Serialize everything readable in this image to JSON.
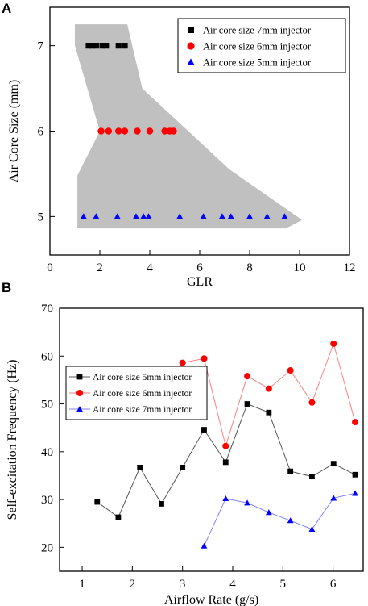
{
  "chart_data": [
    {
      "panel": "A",
      "type": "scatter",
      "xlabel": "GLR",
      "ylabel": "Air Core Size (mm)",
      "xlim": [
        0,
        12
      ],
      "ylim": [
        4.55,
        7.45
      ],
      "x_ticks": [
        0,
        2,
        4,
        6,
        8,
        10,
        12
      ],
      "y_ticks": [
        5,
        6,
        7
      ],
      "grid": false,
      "legend_position": "top-right",
      "region_polygon": {
        "fill": "#c0c0c0",
        "points": [
          [
            1.0,
            7.25
          ],
          [
            3.1,
            7.25
          ],
          [
            3.7,
            6.5
          ],
          [
            7.2,
            5.55
          ],
          [
            10.1,
            4.96
          ],
          [
            9.45,
            4.86
          ],
          [
            1.1,
            4.86
          ],
          [
            1.1,
            5.48
          ],
          [
            2.0,
            6.0
          ],
          [
            1.0,
            7.0
          ]
        ]
      },
      "series": [
        {
          "name": "Air core size 7mm injector",
          "marker": "square",
          "color": "#000000",
          "points": [
            [
              1.55,
              7.0
            ],
            [
              1.7,
              7.0
            ],
            [
              1.85,
              7.0
            ],
            [
              2.1,
              7.0
            ],
            [
              2.25,
              7.0
            ],
            [
              2.75,
              7.0
            ],
            [
              3.0,
              7.0
            ]
          ]
        },
        {
          "name": "Air core size 6mm injector",
          "marker": "circle",
          "color": "#ff0000",
          "points": [
            [
              2.05,
              6.0
            ],
            [
              2.35,
              6.0
            ],
            [
              2.75,
              6.0
            ],
            [
              3.0,
              6.0
            ],
            [
              3.5,
              6.0
            ],
            [
              4.0,
              6.0
            ],
            [
              4.6,
              6.0
            ],
            [
              4.8,
              6.0
            ],
            [
              4.95,
              6.0
            ]
          ]
        },
        {
          "name": "Air core size 5mm injector",
          "marker": "triangle",
          "color": "#0000ff",
          "points": [
            [
              1.35,
              5.0
            ],
            [
              1.85,
              5.0
            ],
            [
              2.7,
              5.0
            ],
            [
              3.45,
              5.0
            ],
            [
              3.75,
              5.0
            ],
            [
              3.95,
              5.0
            ],
            [
              5.2,
              5.0
            ],
            [
              6.15,
              5.0
            ],
            [
              6.9,
              5.0
            ],
            [
              7.25,
              5.0
            ],
            [
              8.0,
              5.0
            ],
            [
              8.7,
              5.0
            ],
            [
              9.4,
              5.0
            ]
          ]
        }
      ]
    },
    {
      "panel": "B",
      "type": "line",
      "xlabel": "Airflow Rate (g/s)",
      "ylabel": "Self-excitation Frequency (Hz)",
      "xlim": [
        0.55,
        6.6
      ],
      "ylim": [
        15,
        70
      ],
      "x_ticks": [
        1,
        2,
        3,
        4,
        5,
        6
      ],
      "y_ticks": [
        20,
        30,
        40,
        50,
        60,
        70
      ],
      "grid": false,
      "legend_position": "center-left",
      "series": [
        {
          "name": "Air core size 5mm injector",
          "marker": "square",
          "color": "#000000",
          "line_color": "#555555",
          "points": [
            [
              1.3,
              29.5
            ],
            [
              1.72,
              26.3
            ],
            [
              2.15,
              36.7
            ],
            [
              2.58,
              29.1
            ],
            [
              3.0,
              36.7
            ],
            [
              3.43,
              44.6
            ],
            [
              3.86,
              37.8
            ],
            [
              4.29,
              50.0
            ],
            [
              4.72,
              48.2
            ],
            [
              5.15,
              35.9
            ],
            [
              5.58,
              34.8
            ],
            [
              6.01,
              37.5
            ],
            [
              6.44,
              35.2
            ]
          ]
        },
        {
          "name": "Air core size 6mm injector",
          "marker": "circle",
          "color": "#ff0000",
          "line_color": "#ff8080",
          "points": [
            [
              3.0,
              58.6
            ],
            [
              3.43,
              59.5
            ],
            [
              3.86,
              41.2
            ],
            [
              4.29,
              55.8
            ],
            [
              4.72,
              53.2
            ],
            [
              5.15,
              57.0
            ],
            [
              5.58,
              50.3
            ],
            [
              6.01,
              62.6
            ],
            [
              6.44,
              46.2
            ]
          ]
        },
        {
          "name": "Air core size 7mm injector",
          "marker": "triangle",
          "color": "#0000ff",
          "line_color": "#8080ff",
          "points": [
            [
              3.43,
              20.3
            ],
            [
              3.86,
              30.2
            ],
            [
              4.29,
              29.3
            ],
            [
              4.72,
              27.3
            ],
            [
              5.15,
              25.6
            ],
            [
              5.58,
              23.8
            ],
            [
              6.01,
              30.3
            ],
            [
              6.44,
              31.3
            ]
          ]
        }
      ]
    }
  ]
}
